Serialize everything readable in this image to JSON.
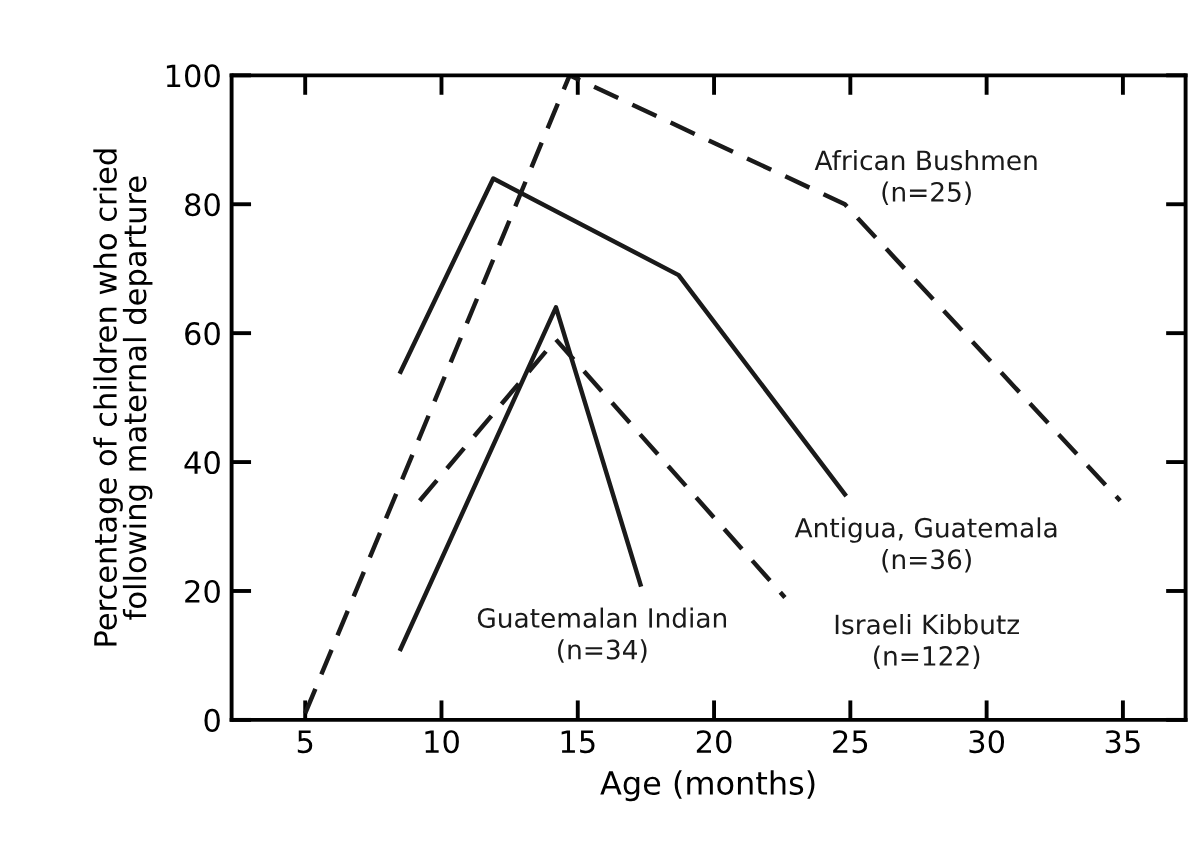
{
  "chart_data": {
    "type": "line",
    "xlabel": "Age (months)",
    "ylabel": "Percentage of children who cried\nfollowing maternal departure",
    "xlim": [
      2.3,
      37.3
    ],
    "xticks": [
      5,
      10,
      15,
      20,
      25,
      30,
      35
    ],
    "ylim": [
      0,
      100
    ],
    "yticks": [
      0,
      20,
      40,
      60,
      80,
      100
    ],
    "grid": false,
    "legend": false,
    "marker": "none",
    "series": [
      {
        "name": "African Bushmen\n(n=25)",
        "color": "#1a1a1a",
        "line_style": "dashed",
        "x": [
          5,
          14.7,
          24.8,
          34.9
        ],
        "values": [
          1,
          100,
          80,
          34
        ]
      },
      {
        "name": "Antigua, Guatemala\n(n=36)",
        "color": "#1a1a1a",
        "line_style": "solid",
        "x": [
          8.5,
          11.9,
          18.7,
          24.8
        ],
        "values": [
          54,
          84,
          69,
          35
        ]
      },
      {
        "name": "Guatemalan Indian\n(n=34)",
        "color": "#1a1a1a",
        "line_style": "solid",
        "x": [
          8.5,
          14.2,
          17.3
        ],
        "values": [
          11,
          64,
          21
        ]
      },
      {
        "name": "Israeli Kibbutz\n(n=122)",
        "color": "#1a1a1a",
        "line_style": "dashed",
        "x": [
          9.2,
          14.2,
          22.6
        ],
        "values": [
          34,
          59,
          19
        ]
      }
    ]
  }
}
